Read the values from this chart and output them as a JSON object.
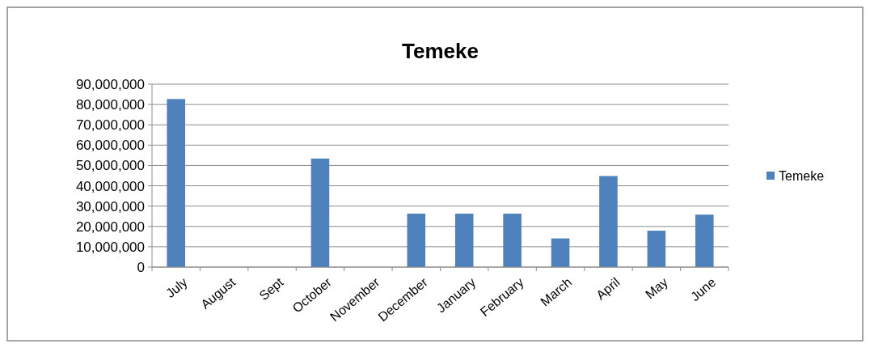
{
  "chart_data": {
    "type": "bar",
    "title": "Temeke",
    "categories": [
      "July",
      "August",
      "Sept",
      "October",
      "November",
      "December",
      "January",
      "February",
      "March",
      "April",
      "May",
      "June"
    ],
    "series": [
      {
        "name": "Temeke",
        "color": "#4f81bd",
        "values": [
          82700000,
          0,
          0,
          53400000,
          0,
          26300000,
          26300000,
          26300000,
          14100000,
          44800000,
          17900000,
          25800000
        ]
      }
    ],
    "ylim": [
      0,
      90000000
    ],
    "yticks": [
      {
        "value": 0,
        "label": "0"
      },
      {
        "value": 10000000,
        "label": "10,000,000"
      },
      {
        "value": 20000000,
        "label": "20,000,000"
      },
      {
        "value": 30000000,
        "label": "30,000,000"
      },
      {
        "value": 40000000,
        "label": "40,000,000"
      },
      {
        "value": 50000000,
        "label": "50,000,000"
      },
      {
        "value": 60000000,
        "label": "60,000,000"
      },
      {
        "value": 70000000,
        "label": "70,000,000"
      },
      {
        "value": 80000000,
        "label": "80,000,000"
      },
      {
        "value": 90000000,
        "label": "90,000,000"
      }
    ],
    "grid": "y",
    "legend": "right"
  }
}
